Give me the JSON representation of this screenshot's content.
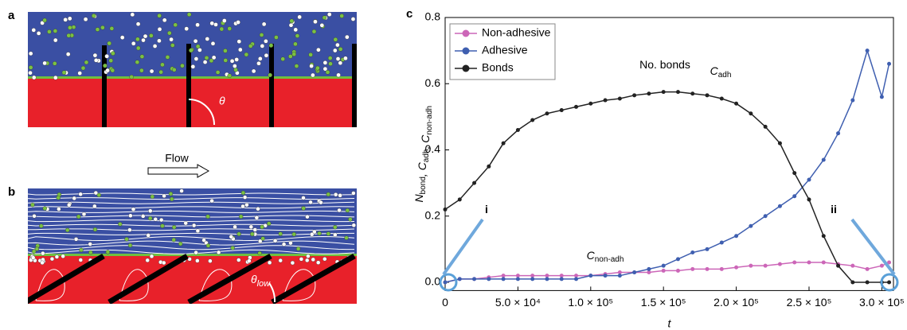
{
  "panels": {
    "a": {
      "label": "a",
      "angle": "θ"
    },
    "b": {
      "label": "b",
      "flow": "Flow",
      "angle": "θ",
      "angle_sub": "low"
    }
  },
  "chart_data": {
    "type": "line",
    "label": "c",
    "x_label": "t",
    "y_label": [
      {
        "text": "N",
        "sub": "bond"
      },
      {
        "text": ", C",
        "sub": "adh"
      },
      {
        "text": ", C",
        "sub": "non-adh"
      }
    ],
    "x": [
      0,
      10000,
      20000,
      30000,
      40000,
      50000,
      60000,
      70000,
      80000,
      90000,
      100000,
      110000,
      120000,
      130000,
      140000,
      150000,
      160000,
      170000,
      180000,
      190000,
      200000,
      210000,
      220000,
      230000,
      240000,
      250000,
      260000,
      270000,
      280000,
      290000,
      300000,
      305000
    ],
    "series": [
      {
        "name": "Non-adhesive",
        "color": "#cc66b8",
        "values": [
          0.0,
          0.01,
          0.01,
          0.015,
          0.02,
          0.02,
          0.02,
          0.02,
          0.02,
          0.02,
          0.02,
          0.025,
          0.03,
          0.03,
          0.03,
          0.035,
          0.035,
          0.04,
          0.04,
          0.04,
          0.045,
          0.05,
          0.05,
          0.055,
          0.06,
          0.06,
          0.06,
          0.055,
          0.05,
          0.04,
          0.05,
          0.06
        ]
      },
      {
        "name": "Adhesive",
        "color": "#3f5fb0",
        "values": [
          0.0,
          0.01,
          0.01,
          0.01,
          0.01,
          0.01,
          0.01,
          0.01,
          0.01,
          0.01,
          0.02,
          0.02,
          0.02,
          0.03,
          0.04,
          0.05,
          0.07,
          0.09,
          0.1,
          0.12,
          0.14,
          0.17,
          0.2,
          0.23,
          0.26,
          0.31,
          0.37,
          0.45,
          0.55,
          0.7,
          0.56,
          0.66
        ]
      },
      {
        "name": "Bonds",
        "color": "#222222",
        "values": [
          0.22,
          0.25,
          0.3,
          0.35,
          0.42,
          0.46,
          0.49,
          0.51,
          0.52,
          0.53,
          0.54,
          0.55,
          0.555,
          0.565,
          0.57,
          0.575,
          0.575,
          0.57,
          0.565,
          0.555,
          0.54,
          0.51,
          0.47,
          0.42,
          0.33,
          0.25,
          0.14,
          0.05,
          0.0,
          0.0,
          0.0,
          0.0
        ]
      }
    ],
    "xlim": [
      0,
      308000
    ],
    "ylim": [
      -0.025,
      0.8
    ],
    "xticks": [
      0,
      {
        "value": 50000,
        "label": "5.0 × 10⁴"
      },
      {
        "value": 100000,
        "label": "1.0 × 10⁵"
      },
      {
        "value": 150000,
        "label": "1.5 × 10⁵"
      },
      {
        "value": 200000,
        "label": "2.0 × 10⁵"
      },
      {
        "value": 250000,
        "label": "2.5 × 10⁵"
      },
      {
        "value": 300000,
        "label": "3.0 × 10⁵"
      }
    ],
    "yticks": [
      {
        "value": 0,
        "label": "0.0"
      },
      0.2,
      0.4,
      0.6,
      0.8
    ],
    "legend": "top-left",
    "annotations": [
      {
        "text": "No. bonds"
      },
      {
        "text": "C",
        "sub": "adh"
      },
      {
        "text": "C",
        "sub": "non-adh"
      },
      {
        "text": "i"
      },
      {
        "text": "ii"
      }
    ]
  }
}
